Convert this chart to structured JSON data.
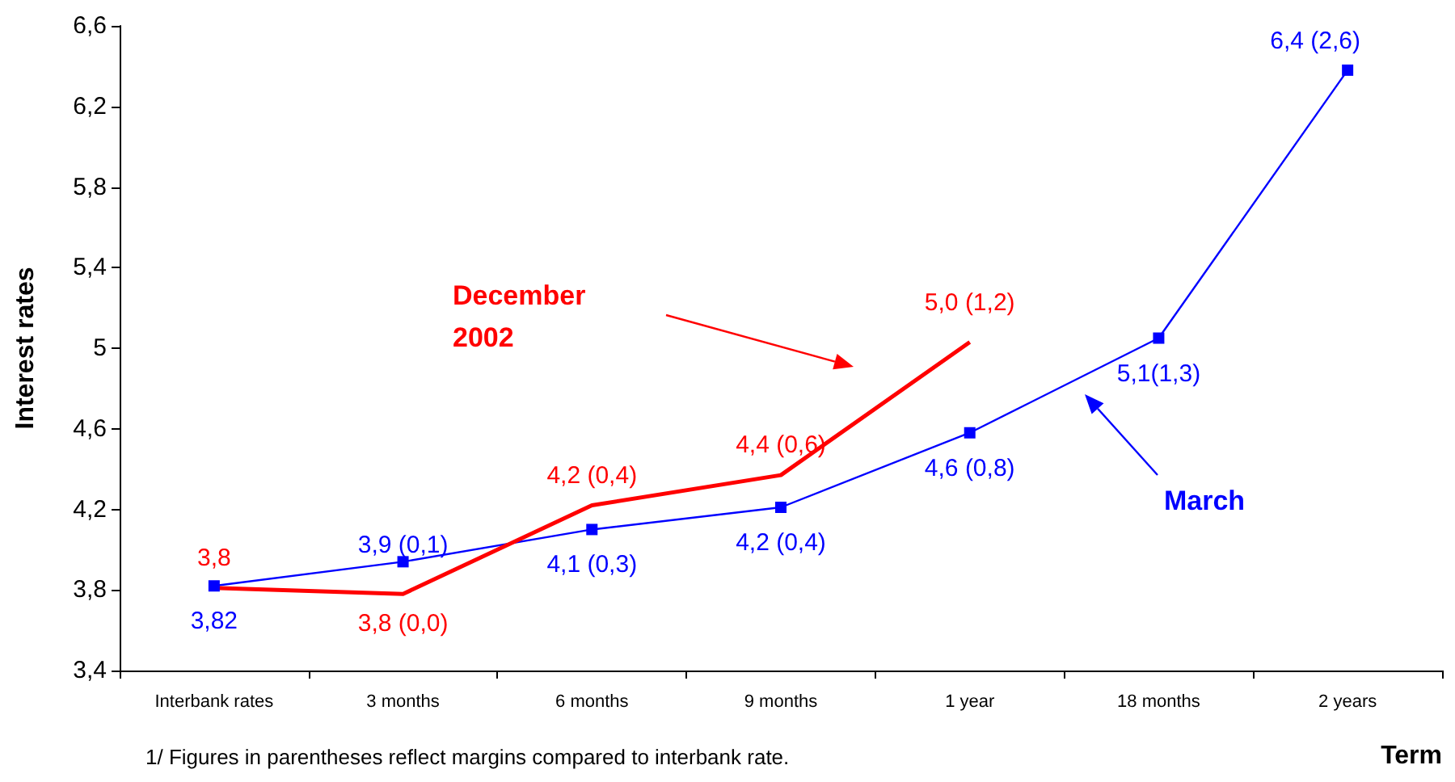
{
  "chart_data": {
    "type": "line",
    "ylabel": "Interest rates",
    "xlabel": "Term",
    "categories": [
      "Interbank rates",
      "3 months",
      "6 months",
      "9 months",
      "1 year",
      "18 months",
      "2 years"
    ],
    "series": [
      {
        "name": "March",
        "color": "#0000ff",
        "marker": "square",
        "values": [
          3.82,
          3.94,
          4.1,
          4.21,
          4.58,
          5.05,
          6.38
        ],
        "value_labels": [
          "3,82",
          "3,9 (0,1)",
          "4,1 (0,3)",
          "4,2 (0,4)",
          "4,6 (0,8)",
          "5,1(1,3)",
          "6,4 (2,6)"
        ]
      },
      {
        "name": "December 2002",
        "color": "#ff0000",
        "marker": "none",
        "values": [
          3.81,
          3.78,
          4.22,
          4.37,
          5.03,
          null,
          null
        ],
        "value_labels": [
          "3,8",
          "3,8 (0,0)",
          "4,2 (0,4)",
          "4,4 (0,6)",
          "5,0 (1,2)",
          null,
          null
        ]
      }
    ],
    "ylim": [
      3.4,
      6.6
    ],
    "yticks": [
      {
        "value": 3.4,
        "label": "3,4"
      },
      {
        "value": 3.8,
        "label": "3,8"
      },
      {
        "value": 4.2,
        "label": "4,2"
      },
      {
        "value": 4.6,
        "label": "4,6"
      },
      {
        "value": 5,
        "label": "5"
      },
      {
        "value": 5.4,
        "label": "5,4"
      },
      {
        "value": 5.8,
        "label": "5,8"
      },
      {
        "value": 6.2,
        "label": "6,2"
      },
      {
        "value": 6.6,
        "label": "6,6"
      }
    ],
    "grid": false,
    "legend": false,
    "annotations": [
      "1/ Figures in parentheses reflect margins compared to interbank rate."
    ]
  }
}
